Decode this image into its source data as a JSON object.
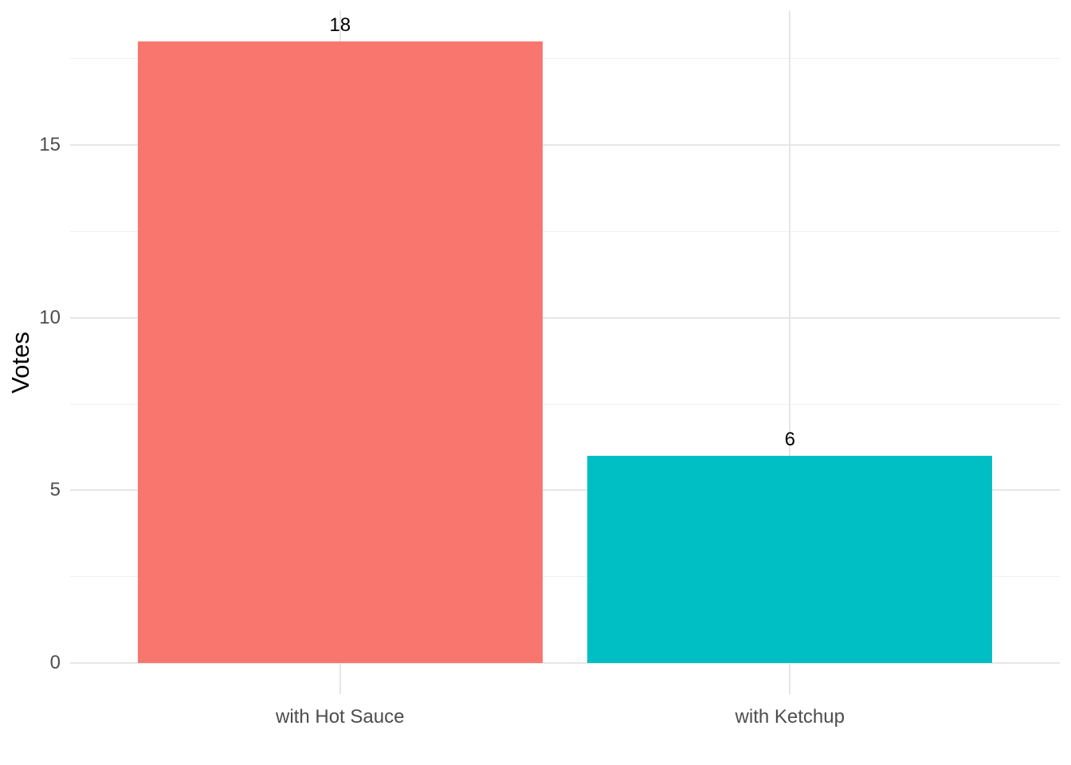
{
  "chart_data": {
    "type": "bar",
    "title": "",
    "categories": [
      "with Hot Sauce",
      "with Ketchup"
    ],
    "values": [
      18,
      6
    ],
    "bar_colors": [
      "#F8766D",
      "#00BFC4"
    ],
    "xlabel": "",
    "ylabel": "Votes",
    "ylim": [
      0,
      18
    ],
    "y_ticks": [
      0,
      5,
      10,
      15
    ],
    "y_minor_ticks": [
      2.5,
      7.5,
      12.5,
      17.5
    ],
    "grid": "major and minor horizontal, vertical at category centers",
    "legend_position": "none",
    "colors": {
      "grid_major": "#E6E6E6",
      "grid_minor": "#F0F0F0",
      "axis_text": "#4D4D4D",
      "value_text": "#000000",
      "background": "#FFFFFF"
    }
  }
}
